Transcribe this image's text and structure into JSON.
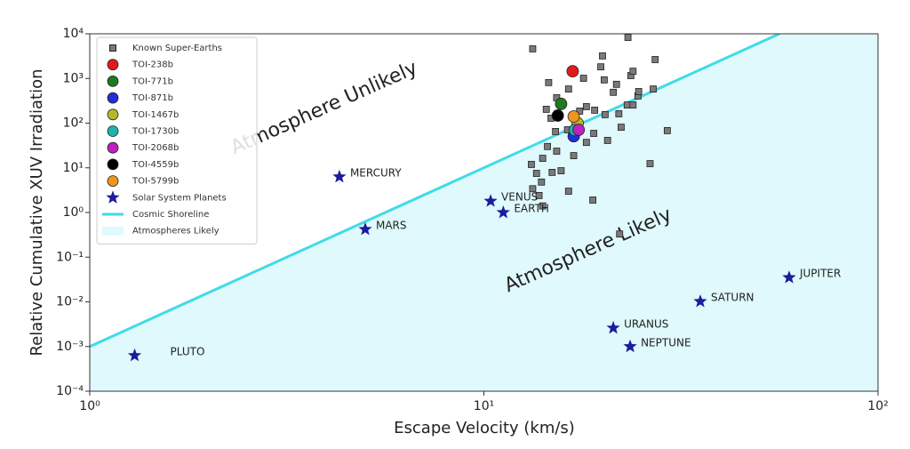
{
  "chart_data": {
    "type": "scatter",
    "xlabel": "Escape Velocity (km/s)",
    "ylabel": "Relative Cumulative XUV Irradiation",
    "xscale": "log",
    "yscale": "log",
    "xlim": [
      1,
      100
    ],
    "ylim": [
      0.0001,
      10000
    ],
    "xticks": [
      {
        "value": 1,
        "label": "10⁰"
      },
      {
        "value": 10,
        "label": "10¹"
      },
      {
        "value": 100,
        "label": "10²"
      }
    ],
    "yticks": [
      {
        "value": 0.0001,
        "label": "10⁻⁴"
      },
      {
        "value": 0.001,
        "label": "10⁻³"
      },
      {
        "value": 0.01,
        "label": "10⁻²"
      },
      {
        "value": 0.1,
        "label": "10⁻¹"
      },
      {
        "value": 1,
        "label": "10⁰"
      },
      {
        "value": 10,
        "label": "10¹"
      },
      {
        "value": 100,
        "label": "10²"
      },
      {
        "value": 1000,
        "label": "10³"
      },
      {
        "value": 10000,
        "label": "10⁴"
      }
    ],
    "legend": "upper left",
    "annotations": [
      "Atmosphere Unlikely",
      "Atmosphere Likely"
    ],
    "series": [
      {
        "name": "Known Super-Earths",
        "marker": "square",
        "color": "#7a7a7a",
        "x": [
          13.3,
          23.2,
          14.6,
          20.0,
          19.8,
          17.9,
          21.7,
          23.6,
          27.2,
          26.9,
          24.6,
          23.1,
          21.3,
          18.2,
          16.4,
          15.3,
          14.4,
          15.2,
          16.3,
          17.5,
          19.1,
          20.3,
          22.0,
          23.9,
          24.7,
          19.0,
          20.6,
          22.3,
          14.5,
          14.1,
          15.3,
          13.2,
          13.6,
          14.9,
          15.7,
          14.0,
          13.3,
          13.8,
          16.4,
          18.9,
          26.4,
          29.2,
          23.9,
          20.2,
          18.2,
          16.9,
          14.8,
          22.1,
          14.1
        ],
        "values": [
          4600,
          8300,
          810,
          3200,
          1820,
          1010,
          740,
          1160,
          2650,
          580,
          405,
          255,
          490,
          234,
          580,
          370,
          204,
          65,
          71,
          186,
          195,
          155,
          162,
          255,
          510,
          59,
          41,
          81,
          30,
          16.3,
          23.6,
          11.9,
          7.5,
          7.9,
          8.6,
          4.8,
          3.4,
          2.4,
          3.0,
          1.9,
          12.4,
          68,
          1450,
          930,
          37,
          18.7,
          129,
          0.33,
          1.4
        ]
      },
      {
        "name": "TOI-238b",
        "marker": "circle",
        "color": "#e31a1c",
        "x": [
          16.8
        ],
        "values": [
          1450
        ]
      },
      {
        "name": "TOI-771b",
        "marker": "circle",
        "color": "#1f7a1f",
        "x": [
          15.7
        ],
        "values": [
          270
        ]
      },
      {
        "name": "TOI-871b",
        "marker": "circle",
        "color": "#1f2fd6",
        "x": [
          16.9
        ],
        "values": [
          51
        ]
      },
      {
        "name": "TOI-1467b",
        "marker": "circle",
        "color": "#b5b82a",
        "x": [
          17.3
        ],
        "values": [
          100
        ]
      },
      {
        "name": "TOI-1730b",
        "marker": "circle",
        "color": "#20b2aa",
        "x": [
          17.0
        ],
        "values": [
          70
        ]
      },
      {
        "name": "TOI-2068b",
        "marker": "circle",
        "color": "#c020c0",
        "x": [
          17.4
        ],
        "values": [
          71
        ]
      },
      {
        "name": "TOI-4559b",
        "marker": "circle",
        "color": "#000000",
        "x": [
          15.4
        ],
        "values": [
          148
        ]
      },
      {
        "name": "TOI-5799b",
        "marker": "circle",
        "color": "#f0961e",
        "x": [
          16.9
        ],
        "values": [
          141
        ]
      },
      {
        "name": "Solar System Planets",
        "marker": "star",
        "color": "#1c1c9c",
        "labels": [
          "PLUTO",
          "MERCURY",
          "MARS",
          "VENUS",
          "EARTH",
          "URANUS",
          "NEPTUNE",
          "SATURN",
          "JUPITER"
        ],
        "x": [
          1.3,
          4.3,
          5.0,
          10.4,
          11.2,
          21.3,
          23.5,
          35.4,
          59.5
        ],
        "values": [
          0.00063,
          6.3,
          0.42,
          1.8,
          1.0,
          0.0026,
          0.001,
          0.0102,
          0.035
        ]
      },
      {
        "name": "Cosmic Shoreline",
        "marker": "line",
        "color": "#3fdbe8",
        "x": [
          1,
          56.2
        ],
        "values": [
          0.001,
          10000
        ]
      },
      {
        "name": "Atmospheres Likely",
        "marker": "area",
        "color": "#dff9fc",
        "x": [
          1,
          56.2
        ],
        "values": [
          0.001,
          10000
        ]
      }
    ]
  }
}
